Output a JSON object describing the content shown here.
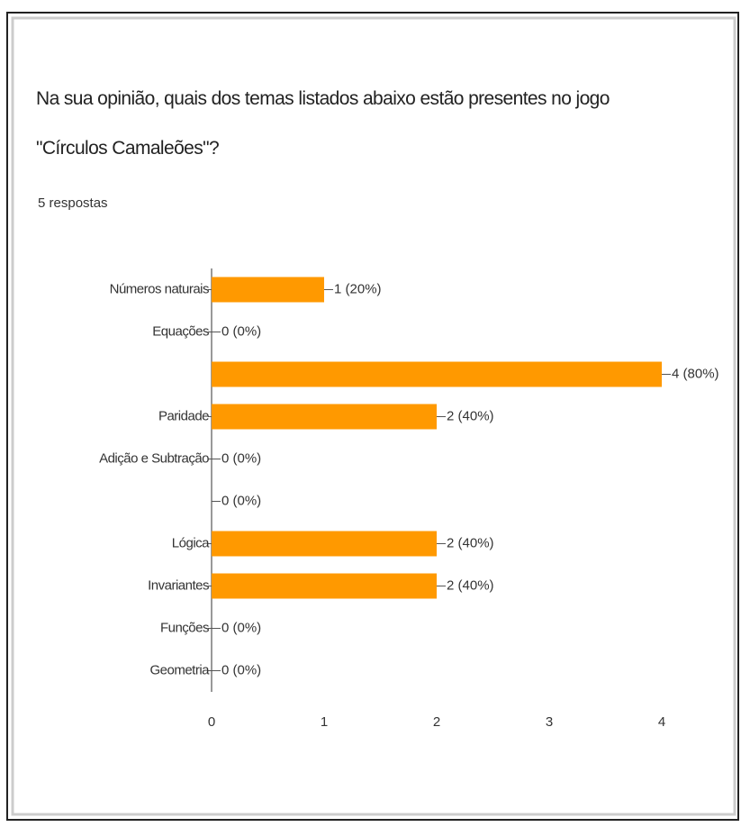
{
  "chart_data": {
    "type": "hbar",
    "title": "Na sua opinião, quais dos temas listados abaixo estão presentes no jogo \"Círculos Camaleões\"?",
    "subtitle": "5 respostas",
    "categories": [
      "Números naturais",
      "Equações",
      null,
      "Paridade",
      "Adição e Subtração",
      null,
      "Lógica",
      "Invariantes",
      "Funções",
      "Geometria"
    ],
    "values": [
      1,
      0,
      4,
      2,
      0,
      0,
      2,
      2,
      0,
      0
    ],
    "value_labels": [
      "1 (20%)",
      "0 (0%)",
      "4 (80%)",
      "2 (40%)",
      "0 (0%)",
      "0 (0%)",
      "2 (40%)",
      "2 (40%)",
      "0 (0%)",
      "0 (0%)"
    ],
    "color": "#ff9900",
    "xlim": [
      0,
      4
    ],
    "xticks": [
      0,
      1,
      2,
      3,
      4
    ],
    "grid": false
  }
}
